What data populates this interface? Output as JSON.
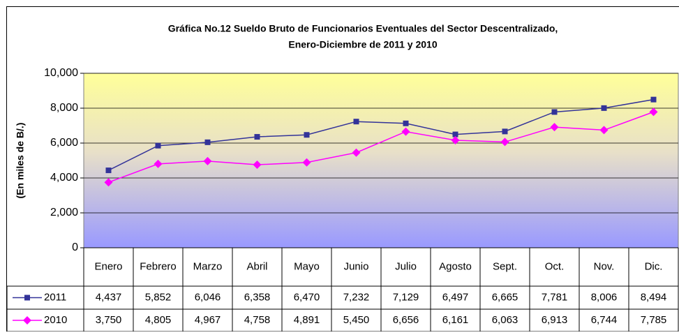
{
  "chart_data": {
    "type": "line",
    "title": "Gráfica No.12 Sueldo Bruto de Funcionarios Eventuales del Sector Descentralizado,",
    "subtitle": "Enero-Diciembre de 2011 y 2010",
    "y_label": "(En miles de B/.)",
    "categories": [
      "Enero",
      "Febrero",
      "Marzo",
      "Abril",
      "Mayo",
      "Junio",
      "Julio",
      "Agosto",
      "Sept.",
      "Oct.",
      "Nov.",
      "Dic."
    ],
    "series": [
      {
        "name": "2011",
        "color": "#333399",
        "values": [
          4437,
          5852,
          6046,
          6358,
          6470,
          7232,
          7129,
          6497,
          6665,
          7781,
          8006,
          8494
        ],
        "value_labels": [
          "4,437",
          "5,852",
          "6,046",
          "6,358",
          "6,470",
          "7,232",
          "7,129",
          "6,497",
          "6,665",
          "7,781",
          "8,006",
          "8,494"
        ]
      },
      {
        "name": "2010",
        "color": "#ff00ff",
        "values": [
          3750,
          4805,
          4967,
          4758,
          4891,
          5450,
          6656,
          6161,
          6063,
          6913,
          6744,
          7785
        ],
        "value_labels": [
          "3,750",
          "4,805",
          "4,967",
          "4,758",
          "4,891",
          "5,450",
          "6,656",
          "6,161",
          "6,063",
          "6,913",
          "6,744",
          "7,785"
        ]
      }
    ],
    "ylim": [
      0,
      10000
    ],
    "yticks": [
      0,
      {
        "value": 2000,
        "label": "2,000"
      },
      {
        "value": 4000,
        "label": "4,000"
      },
      {
        "value": 6000,
        "label": "6,000"
      },
      {
        "value": 8000,
        "label": "8,000"
      },
      {
        "value": 10000,
        "label": "10,000"
      }
    ],
    "grid": true
  }
}
